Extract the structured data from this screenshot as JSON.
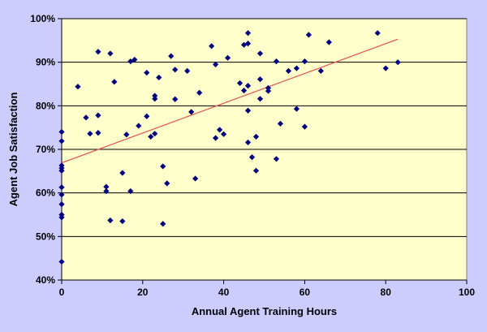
{
  "chart_data": {
    "type": "scatter",
    "title": "",
    "xlabel": "Annual Agent Training Hours",
    "ylabel": "Agent Job Satisfaction",
    "xlim": [
      0,
      100
    ],
    "ylim": [
      40,
      100
    ],
    "x_ticks": [
      "0",
      "20",
      "40",
      "60",
      "80",
      "100"
    ],
    "y_ticks": [
      "40%",
      "50%",
      "60%",
      "70%",
      "80%",
      "90%",
      "100%"
    ],
    "grid": "horizontal",
    "legend": "none",
    "colors": {
      "background": "#ccccff",
      "plot_area": "#ffffcc",
      "marker": "#000080",
      "trendline": "#e85c5c",
      "grid": "#000000"
    },
    "series": [
      {
        "marker": "diamond",
        "points": [
          [
            0,
            44.2
          ],
          [
            0,
            54.4
          ],
          [
            0,
            55.0
          ],
          [
            0,
            57.4
          ],
          [
            0,
            59.6
          ],
          [
            0,
            61.3
          ],
          [
            0,
            65.1
          ],
          [
            0,
            65.7
          ],
          [
            0,
            66.3
          ],
          [
            0,
            71.9
          ],
          [
            0,
            74.0
          ],
          [
            4,
            84.4
          ],
          [
            6,
            77.3
          ],
          [
            7,
            73.6
          ],
          [
            9,
            92.4
          ],
          [
            9,
            77.8
          ],
          [
            9,
            73.8
          ],
          [
            11,
            61.4
          ],
          [
            11,
            60.4
          ],
          [
            12,
            92.0
          ],
          [
            12,
            53.7
          ],
          [
            13,
            85.5
          ],
          [
            15,
            64.6
          ],
          [
            15,
            53.5
          ],
          [
            16,
            73.4
          ],
          [
            17,
            90.2
          ],
          [
            17,
            60.4
          ],
          [
            18,
            90.6
          ],
          [
            19,
            75.4
          ],
          [
            21,
            87.6
          ],
          [
            21,
            77.6
          ],
          [
            22,
            72.9
          ],
          [
            23,
            82.3
          ],
          [
            23,
            81.6
          ],
          [
            23,
            73.6
          ],
          [
            24,
            86.5
          ],
          [
            25,
            66.1
          ],
          [
            25,
            52.9
          ],
          [
            26,
            62.2
          ],
          [
            27,
            91.4
          ],
          [
            28,
            88.3
          ],
          [
            28,
            81.5
          ],
          [
            31,
            88.0
          ],
          [
            32,
            78.6
          ],
          [
            33,
            63.3
          ],
          [
            34,
            83.0
          ],
          [
            37,
            93.7
          ],
          [
            38,
            89.5
          ],
          [
            38,
            72.6
          ],
          [
            39,
            74.5
          ],
          [
            40,
            73.5
          ],
          [
            41,
            91.0
          ],
          [
            44,
            85.2
          ],
          [
            45,
            94.0
          ],
          [
            45,
            83.5
          ],
          [
            46,
            96.7
          ],
          [
            46,
            94.3
          ],
          [
            46,
            84.6
          ],
          [
            46,
            78.9
          ],
          [
            46,
            71.6
          ],
          [
            47,
            68.2
          ],
          [
            48,
            72.9
          ],
          [
            48,
            65.1
          ],
          [
            49,
            92.0
          ],
          [
            49,
            86.1
          ],
          [
            49,
            81.6
          ],
          [
            51,
            84.1
          ],
          [
            51,
            83.4
          ],
          [
            53,
            90.2
          ],
          [
            53,
            67.8
          ],
          [
            54,
            75.9
          ],
          [
            56,
            88.0
          ],
          [
            58,
            88.6
          ],
          [
            58,
            79.3
          ],
          [
            60,
            90.2
          ],
          [
            60,
            75.2
          ],
          [
            61,
            96.3
          ],
          [
            64,
            88.0
          ],
          [
            66,
            94.6
          ],
          [
            78,
            96.7
          ],
          [
            80,
            88.6
          ],
          [
            83,
            90.0
          ]
        ]
      }
    ],
    "trendline": {
      "x": [
        0,
        83
      ],
      "y": [
        66.9,
        95.3
      ]
    }
  }
}
